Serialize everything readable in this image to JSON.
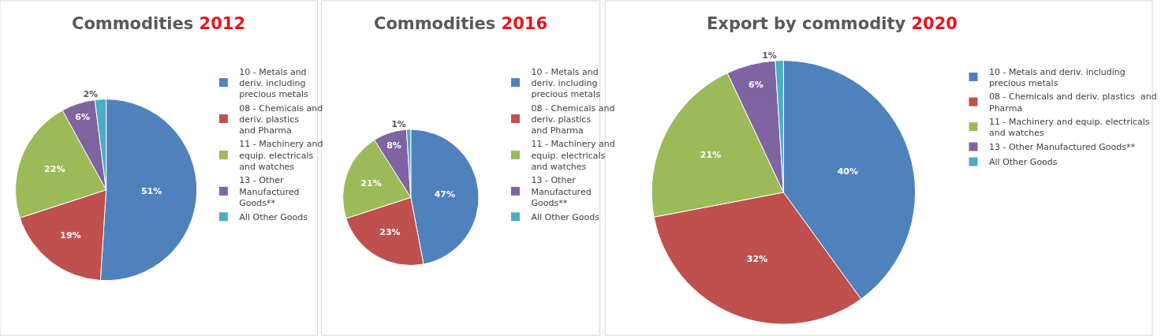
{
  "chart_data": [
    {
      "type": "pie",
      "title": "Commodities 2012",
      "categories": [
        "10 - Metals and deriv. including precious metals",
        "08 - Chemicals and deriv. plastics  and Pharma",
        "11 - Machinery and equip. electricals and watches",
        "13 - Other Manufactured Goods**",
        "All Other Goods"
      ],
      "values": [
        51,
        19,
        22,
        6,
        2
      ],
      "value_labels": [
        "51%",
        "19%",
        "22%",
        "6%",
        "2%"
      ],
      "colors": [
        "#4f81bd",
        "#c0504d",
        "#9bbb59",
        "#8064a2",
        "#4bacc6"
      ],
      "legend": "right"
    },
    {
      "type": "pie",
      "title": "Commodities 2016",
      "categories": [
        "10 - Metals and deriv. including precious metals",
        "08 - Chemicals and deriv. plastics  and Pharma",
        "11 - Machinery and equip. electricals and watches",
        "13 - Other Manufactured Goods**",
        "All Other Goods"
      ],
      "values": [
        47,
        23,
        21,
        8,
        1
      ],
      "value_labels": [
        "47%",
        "23%",
        "21%",
        "8%",
        "1%"
      ],
      "colors": [
        "#4f81bd",
        "#c0504d",
        "#9bbb59",
        "#8064a2",
        "#4bacc6"
      ],
      "legend": "right"
    },
    {
      "type": "pie",
      "title": "Export by commodity 2020",
      "categories": [
        "10 - Metals and deriv. including precious metals",
        "08 - Chemicals and deriv. plastics  and Pharma",
        "11 - Machinery and equip. electricals and watches",
        "13 - Other Manufactured Goods**",
        "All Other Goods"
      ],
      "values": [
        40,
        32,
        21,
        6,
        1
      ],
      "value_labels": [
        "40%",
        "32%",
        "21%",
        "6%",
        "1%"
      ],
      "colors": [
        "#4f81bd",
        "#c0504d",
        "#9bbb59",
        "#8064a2",
        "#4bacc6"
      ],
      "legend": "right"
    }
  ]
}
